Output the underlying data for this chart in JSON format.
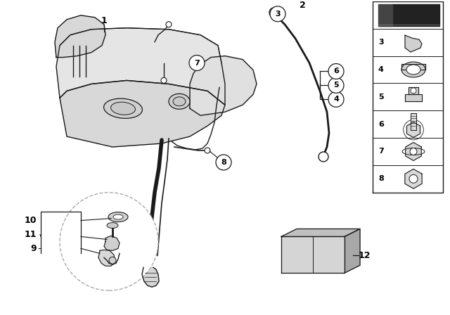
{
  "bg_color": "#ffffff",
  "line_color": "#1a1a1a",
  "lgray": "#cccccc",
  "mgray": "#aaaaaa",
  "dgray": "#777777",
  "tank_color": "#e8e8e8",
  "tank_shade": "#d0d0d0",
  "fig_w": 6.4,
  "fig_h": 4.48,
  "dpi": 100
}
